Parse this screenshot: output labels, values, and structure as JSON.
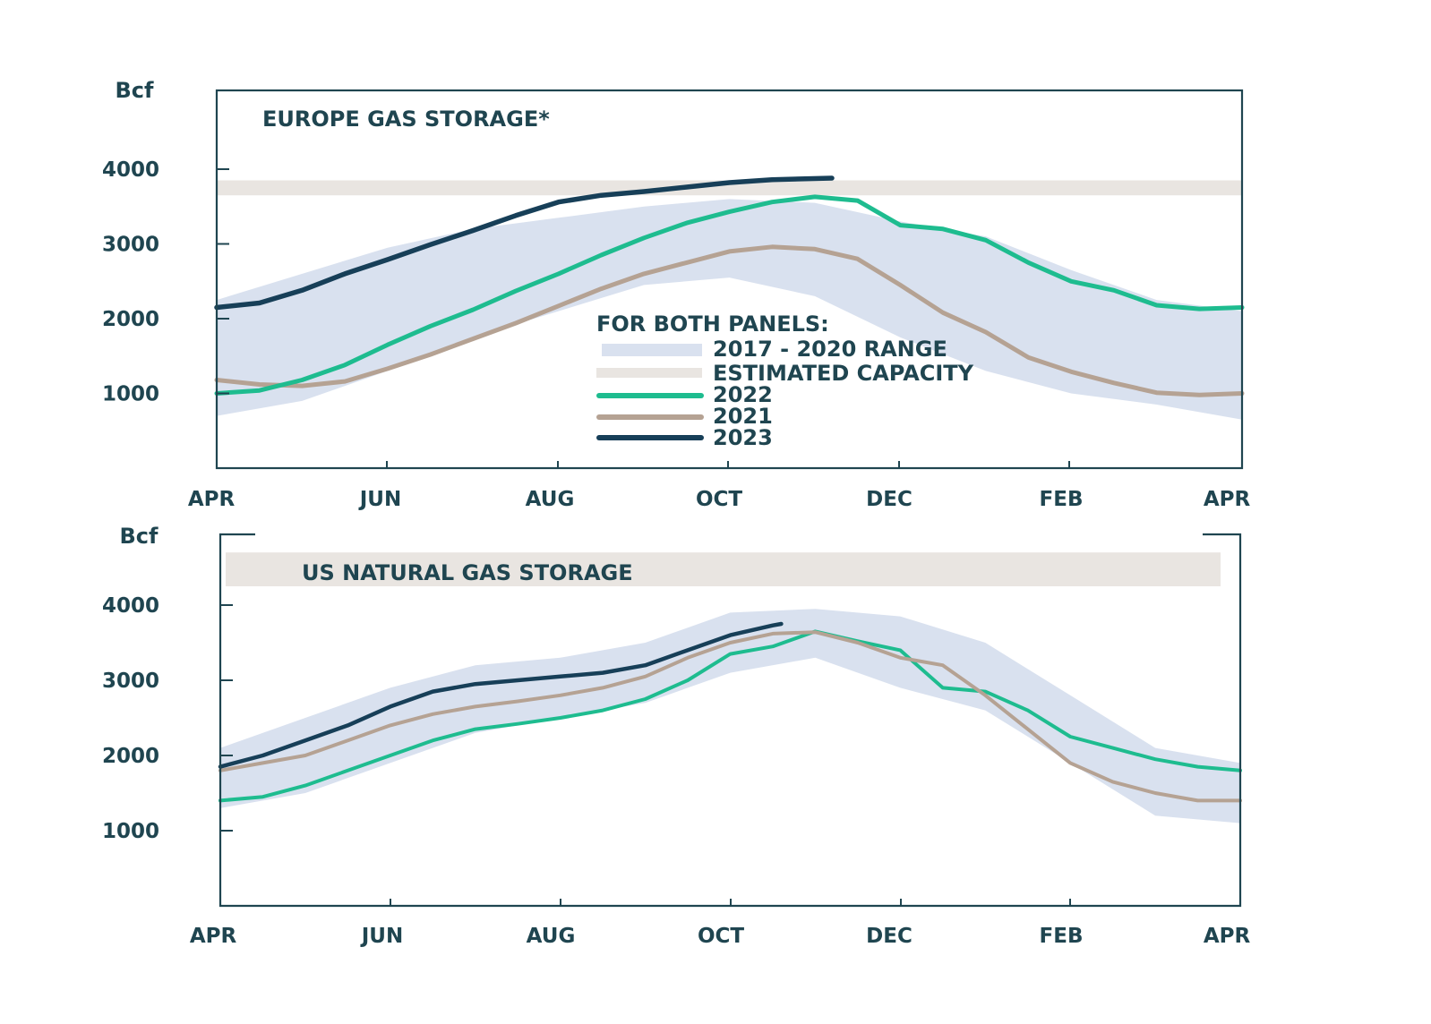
{
  "colors": {
    "range_band": "#d9e1ef",
    "capacity_band": "#e9e5e1",
    "y2022": "#1ebc8f",
    "y2021": "#b5a293",
    "y2023": "#173f58",
    "axis": "#1f4550"
  },
  "legend": {
    "heading": "FOR BOTH PANELS:",
    "range": "2017 - 2020 RANGE",
    "capacity": "ESTIMATED CAPACITY",
    "y2022": "2022",
    "y2021": "2021",
    "y2023": "2023"
  },
  "chart_data": [
    {
      "type": "line",
      "title": "EUROPE GAS STORAGE*",
      "ylabel": "Bcf",
      "xlabel": "",
      "months": [
        "APR",
        "JUN",
        "AUG",
        "OCT",
        "DEC",
        "FEB",
        "APR"
      ],
      "x_unit": "months since April",
      "xlim": [
        0,
        12
      ],
      "ylim": [
        0,
        5000
      ],
      "yticks": [
        1000,
        2000,
        3000,
        4000
      ],
      "capacity_band": [
        3650,
        3850
      ],
      "range_band": {
        "x": [
          0,
          1,
          2,
          3,
          4,
          5,
          6,
          7,
          8,
          9,
          10,
          11,
          12
        ],
        "low": [
          700,
          900,
          1300,
          1750,
          2100,
          2450,
          2550,
          2300,
          1750,
          1300,
          1000,
          850,
          650
        ],
        "high": [
          2250,
          2600,
          2950,
          3200,
          3350,
          3500,
          3600,
          3550,
          3300,
          3100,
          2650,
          2250,
          2100
        ]
      },
      "series": [
        {
          "name": "2022",
          "x": [
            0,
            0.5,
            1,
            1.5,
            2,
            2.5,
            3,
            3.5,
            4,
            4.5,
            5,
            5.5,
            6,
            6.5,
            7,
            7.5,
            8,
            8.5,
            9,
            9.5,
            10,
            10.5,
            11,
            11.5,
            12
          ],
          "values": [
            1000,
            1040,
            1180,
            1380,
            1650,
            1900,
            2120,
            2370,
            2600,
            2850,
            3080,
            3280,
            3430,
            3560,
            3630,
            3580,
            3250,
            3200,
            3050,
            2750,
            2500,
            2380,
            2180,
            2130,
            2150
          ]
        },
        {
          "name": "2021",
          "x": [
            0,
            0.5,
            1,
            1.5,
            2,
            2.5,
            3,
            3.5,
            4,
            4.5,
            5,
            5.5,
            6,
            6.5,
            7,
            7.5,
            8,
            8.5,
            9,
            9.5,
            10,
            10.5,
            11,
            11.5,
            12
          ],
          "values": [
            1180,
            1120,
            1100,
            1160,
            1330,
            1520,
            1730,
            1940,
            2170,
            2400,
            2600,
            2750,
            2900,
            2960,
            2930,
            2800,
            2450,
            2080,
            1820,
            1480,
            1290,
            1140,
            1010,
            980,
            1000
          ]
        },
        {
          "name": "2023",
          "x": [
            0,
            0.5,
            1,
            1.5,
            2,
            2.5,
            3,
            3.5,
            4,
            4.5,
            5,
            5.5,
            6,
            6.5,
            7.2
          ],
          "values": [
            2150,
            2210,
            2380,
            2600,
            2790,
            2990,
            3180,
            3380,
            3560,
            3650,
            3700,
            3760,
            3820,
            3860,
            3880
          ]
        }
      ]
    },
    {
      "type": "line",
      "title": "US NATURAL GAS STORAGE",
      "ylabel": "Bcf",
      "xlabel": "",
      "months": [
        "APR",
        "JUN",
        "AUG",
        "OCT",
        "DEC",
        "FEB",
        "APR"
      ],
      "x_unit": "months since April",
      "xlim": [
        0,
        12
      ],
      "ylim": [
        0,
        5000
      ],
      "yticks": [
        1000,
        2000,
        3000,
        4000
      ],
      "capacity_band": [
        4250,
        4700
      ],
      "range_band": {
        "x": [
          0,
          1,
          2,
          3,
          4,
          5,
          6,
          7,
          8,
          9,
          10,
          11,
          12
        ],
        "low": [
          1300,
          1500,
          1900,
          2300,
          2500,
          2700,
          3100,
          3300,
          2900,
          2600,
          1900,
          1200,
          1100
        ],
        "high": [
          2100,
          2500,
          2900,
          3200,
          3300,
          3500,
          3900,
          3950,
          3850,
          3500,
          2800,
          2100,
          1900
        ]
      },
      "series": [
        {
          "name": "2022",
          "x": [
            0,
            0.5,
            1,
            1.5,
            2,
            2.5,
            3,
            3.5,
            4,
            4.5,
            5,
            5.5,
            6,
            6.5,
            7,
            7.5,
            8,
            8.5,
            9,
            9.5,
            10,
            10.5,
            11,
            11.5,
            12
          ],
          "values": [
            1400,
            1450,
            1600,
            1800,
            2000,
            2200,
            2350,
            2420,
            2500,
            2600,
            2750,
            3000,
            3350,
            3450,
            3650,
            3520,
            3400,
            2900,
            2850,
            2600,
            2250,
            2100,
            1950,
            1850,
            1800
          ]
        },
        {
          "name": "2021",
          "x": [
            0,
            0.5,
            1,
            1.5,
            2,
            2.5,
            3,
            3.5,
            4,
            4.5,
            5,
            5.5,
            6,
            6.5,
            7,
            7.5,
            8,
            8.5,
            9,
            9.5,
            10,
            10.5,
            11,
            11.5,
            12
          ],
          "values": [
            1800,
            1900,
            2000,
            2200,
            2400,
            2550,
            2650,
            2720,
            2800,
            2900,
            3050,
            3300,
            3500,
            3620,
            3640,
            3500,
            3300,
            3200,
            2800,
            2350,
            1900,
            1650,
            1500,
            1400,
            1400
          ]
        },
        {
          "name": "2023",
          "x": [
            0,
            0.5,
            1,
            1.5,
            2,
            2.5,
            3,
            3.5,
            4,
            4.5,
            5,
            5.5,
            6,
            6.5,
            6.6
          ],
          "values": [
            1850,
            2000,
            2200,
            2400,
            2650,
            2850,
            2950,
            3000,
            3050,
            3100,
            3200,
            3400,
            3600,
            3730,
            3750
          ]
        }
      ]
    }
  ]
}
